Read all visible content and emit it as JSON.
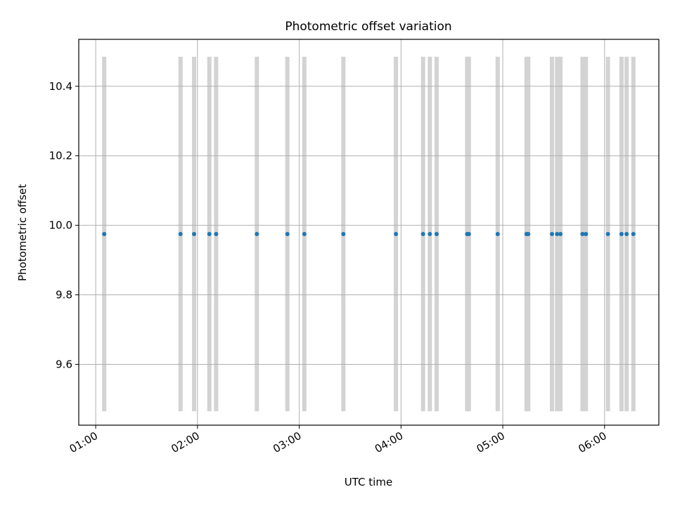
{
  "chart_data": {
    "type": "scatter",
    "title": "Photometric offset variation",
    "xlabel": "UTC time",
    "ylabel": "Photometric offset",
    "x_axis": {
      "format": "HH:MM",
      "range": [
        "00:50",
        "06:32"
      ],
      "ticks": [
        "01:00",
        "02:00",
        "03:00",
        "04:00",
        "05:00",
        "06:00"
      ]
    },
    "y_axis": {
      "range": [
        9.425,
        10.535
      ],
      "ticks": [
        9.6,
        9.8,
        10.0,
        10.2,
        10.4
      ],
      "tick_labels": [
        "9.6",
        "9.8",
        "10.0",
        "10.2",
        "10.4"
      ]
    },
    "grid": true,
    "point_color": "#1f77b4",
    "band_color": "#d3d3d3",
    "band_y_range": [
      9.465,
      10.485
    ],
    "x": [
      "01:05",
      "01:50",
      "01:58",
      "02:07",
      "02:11",
      "02:35",
      "02:53",
      "03:03",
      "03:26",
      "03:57",
      "04:13",
      "04:17",
      "04:21",
      "04:39",
      "04:40",
      "04:57",
      "05:14",
      "05:15",
      "05:29",
      "05:32",
      "05:34",
      "05:47",
      "05:49",
      "06:02",
      "06:10",
      "06:13",
      "06:17"
    ],
    "y": [
      9.975,
      9.975,
      9.975,
      9.975,
      9.975,
      9.975,
      9.975,
      9.975,
      9.975,
      9.975,
      9.975,
      9.975,
      9.975,
      9.975,
      9.975,
      9.975,
      9.975,
      9.975,
      9.975,
      9.975,
      9.975,
      9.975,
      9.975,
      9.975,
      9.975,
      9.975,
      9.975
    ]
  }
}
